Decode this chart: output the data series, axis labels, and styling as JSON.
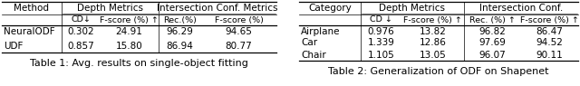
{
  "table1": {
    "title": "Table 1: Avg. results on single-object fitting",
    "header_row1_col0": "Method",
    "span1_label": "Depth Metrics",
    "span2_label": "Intersection Conf. Metrics",
    "header_row2": [
      "CD↓",
      "F-score (%) ↑",
      "Rec.(%)",
      "F-score (%)"
    ],
    "rows": [
      [
        "NeuralODF",
        "0.302",
        "24.91",
        "96.29",
        "94.65"
      ],
      [
        "UDF",
        "0.857",
        "15.80",
        "86.94",
        "80.77"
      ]
    ]
  },
  "table2": {
    "title": "Table 2: Generalization of ODF on Shapenet",
    "header_row1_col0": "Category",
    "span1_label": "Depth Metrics",
    "span2_label": "Intersection Conf.",
    "header_row2": [
      "CD ↓",
      "F-score (%) ↑",
      "Rec. (%) ↑",
      "F-score (%) ↑"
    ],
    "rows": [
      [
        "Airplane",
        "0.976",
        "13.82",
        "96.82",
        "86.47"
      ],
      [
        "Car",
        "1.339",
        "12.86",
        "97.69",
        "94.52"
      ],
      [
        "Chair",
        "1.105",
        "13.05",
        "96.07",
        "90.11"
      ]
    ]
  },
  "bg_color": "#ffffff",
  "line_color": "#000000",
  "text_color": "#000000"
}
